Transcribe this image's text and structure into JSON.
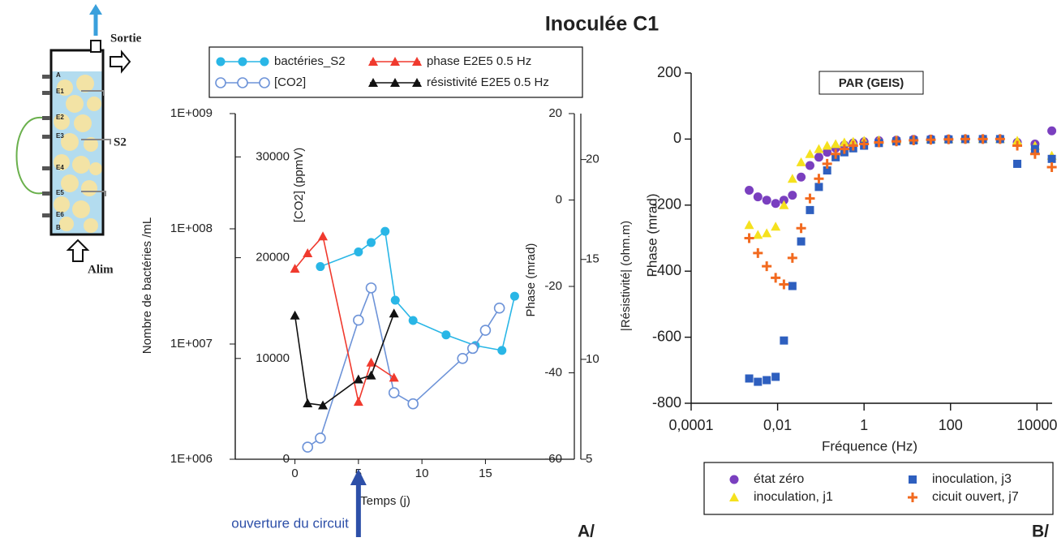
{
  "title": "Inoculée C1",
  "diagram": {
    "outlet": "Sortie",
    "sample": "S2",
    "inlet": "Alim",
    "electrodes": [
      "A",
      "E1",
      "E2",
      "E3",
      "E4",
      "E5",
      "E6",
      "B"
    ]
  },
  "chart_data": [
    {
      "type": "line",
      "x_label": "Temps (j)",
      "xlim": [
        -4.7,
        22
      ],
      "xticks": [
        0,
        5,
        10,
        15
      ],
      "axes": [
        {
          "side": "left",
          "label": "Nombre de bactéries /mL",
          "log": true,
          "ylim": [
            1000000,
            1000000000
          ],
          "yticks": [
            {
              "value": 1000000,
              "label": "1E+006"
            },
            {
              "value": 10000000,
              "label": "1E+007"
            },
            {
              "value": 100000000,
              "label": "1E+008"
            },
            {
              "value": 1000000000,
              "label": "1E+009"
            }
          ]
        },
        {
          "side": "left-inner",
          "label": "[CO2] (ppmV)",
          "ylim": [
            0,
            34300
          ],
          "yticks": [
            0,
            10000,
            20000,
            30000
          ]
        },
        {
          "side": "right-inner",
          "label": "Phase (mrad)",
          "ylim": [
            -60,
            20
          ],
          "yticks": [
            -60,
            -40,
            -20,
            0,
            20
          ]
        },
        {
          "side": "right",
          "label": "|Résistivité| (ohm.m)",
          "ylim": [
            5,
            22.3
          ],
          "yticks": [
            5,
            10,
            15,
            20
          ]
        }
      ],
      "series": [
        {
          "name": "bactéries_S2",
          "color": "#29b6e6",
          "marker": "circle",
          "axis": 0,
          "x": [
            2,
            5,
            6,
            7.1,
            7.9,
            9.3,
            11.9,
            14.2,
            16.3,
            17.3
          ],
          "values": [
            47000000,
            63000000,
            76000000,
            95000000,
            24000000,
            16000000,
            12000000,
            9700000,
            8800000,
            26000000
          ]
        },
        {
          "name": "[CO2]",
          "color": "#6d93d8",
          "marker": "circle-open",
          "axis": 1,
          "x": [
            1,
            2,
            5,
            6,
            7.8,
            9.3,
            13.2,
            14,
            15,
            16.1
          ],
          "values": [
            1200,
            2100,
            13800,
            17000,
            6600,
            5500,
            10000,
            11000,
            12800,
            15000
          ]
        },
        {
          "name": "phase E2E5 0.5 Hz",
          "color": "#f03a2e",
          "marker": "triangle",
          "axis": 2,
          "x": [
            0,
            1,
            2.2,
            5,
            6,
            7.8
          ],
          "values": [
            -15.9,
            -12.3,
            -8.4,
            -46.7,
            -37.6,
            -41.1
          ]
        },
        {
          "name": "résistivité E2E5 0.5 Hz",
          "color": "#111111",
          "marker": "triangle",
          "axis": 3,
          "x": [
            0,
            1,
            2.2,
            5,
            6,
            7.8
          ],
          "values": [
            12.2,
            7.8,
            7.7,
            9.0,
            9.2,
            12.3
          ]
        }
      ],
      "annotations": [
        {
          "text": "ouverture du circuit",
          "x": 5
        }
      ],
      "panel_label": "A/"
    },
    {
      "type": "scatter",
      "title": "PAR (GEIS)",
      "x_label": "Fréquence (Hz)",
      "y_label": "Phase (mrad)",
      "xlog": true,
      "xlim": [
        0.0001,
        22400
      ],
      "xticks": [
        {
          "value": 0.0001,
          "label": "0,0001"
        },
        {
          "value": 0.01,
          "label": "0,01"
        },
        1,
        100,
        10000
      ],
      "ylim": [
        -800,
        200
      ],
      "yticks": [
        -800,
        -600,
        -400,
        -200,
        0,
        200
      ],
      "series": [
        {
          "name": "état zéro",
          "color": "#7a3fbf",
          "marker": "circle",
          "x": [
            0.0022,
            0.0035,
            0.0056,
            0.009,
            0.014,
            0.022,
            0.035,
            0.056,
            0.09,
            0.14,
            0.22,
            0.35,
            0.56,
            1,
            2.2,
            5.6,
            14,
            35,
            90,
            220,
            560,
            1400,
            3500,
            9000,
            22000
          ],
          "values": [
            -155,
            -175,
            -185,
            -195,
            -185,
            -170,
            -115,
            -80,
            -55,
            -40,
            -28,
            -18,
            -12,
            -8,
            -5,
            -3,
            -1,
            0,
            0,
            0,
            0,
            0,
            -10,
            -15,
            25
          ]
        },
        {
          "name": "inoculation, j1",
          "color": "#f5e11e",
          "marker": "triangle",
          "x": [
            0.0022,
            0.0035,
            0.0056,
            0.009,
            0.014,
            0.022,
            0.035,
            0.056,
            0.09,
            0.14,
            0.22,
            0.35,
            0.56,
            1,
            2.2,
            5.6,
            14,
            35,
            90,
            220,
            560,
            1400,
            3500,
            9000,
            22000
          ],
          "values": [
            -260,
            -290,
            -285,
            -265,
            -200,
            -120,
            -70,
            -45,
            -30,
            -20,
            -15,
            -10,
            -8,
            -5,
            -3,
            -2,
            -1,
            0,
            0,
            0,
            0,
            0,
            -5,
            -20,
            -50
          ]
        },
        {
          "name": "inoculation, j3",
          "color": "#2e5fbf",
          "marker": "square",
          "x": [
            0.0022,
            0.0035,
            0.0056,
            0.009,
            0.014,
            0.022,
            0.035,
            0.056,
            0.09,
            0.14,
            0.22,
            0.35,
            0.56,
            1,
            2.2,
            5.6,
            14,
            35,
            90,
            220,
            560,
            1400,
            3500,
            9000,
            22000
          ],
          "values": [
            -725,
            -735,
            -730,
            -720,
            -610,
            -445,
            -310,
            -215,
            -145,
            -95,
            -55,
            -40,
            -28,
            -20,
            -12,
            -7,
            -4,
            -2,
            -1,
            0,
            0,
            0,
            -75,
            -30,
            -60
          ]
        },
        {
          "name": "cicuit ouvert, j7",
          "color": "#f26a1f",
          "marker": "plus",
          "x": [
            0.0022,
            0.0035,
            0.0056,
            0.009,
            0.014,
            0.022,
            0.035,
            0.056,
            0.09,
            0.14,
            0.22,
            0.35,
            0.56,
            1,
            2.2,
            5.6,
            14,
            35,
            90,
            220,
            560,
            1400,
            3500,
            9000,
            22000
          ],
          "values": [
            -300,
            -345,
            -385,
            -420,
            -440,
            -360,
            -270,
            -180,
            -120,
            -75,
            -45,
            -30,
            -20,
            -15,
            -10,
            -7,
            -4,
            -2,
            -1,
            0,
            0,
            0,
            -20,
            -45,
            -85
          ]
        }
      ],
      "panel_label": "B/"
    }
  ]
}
